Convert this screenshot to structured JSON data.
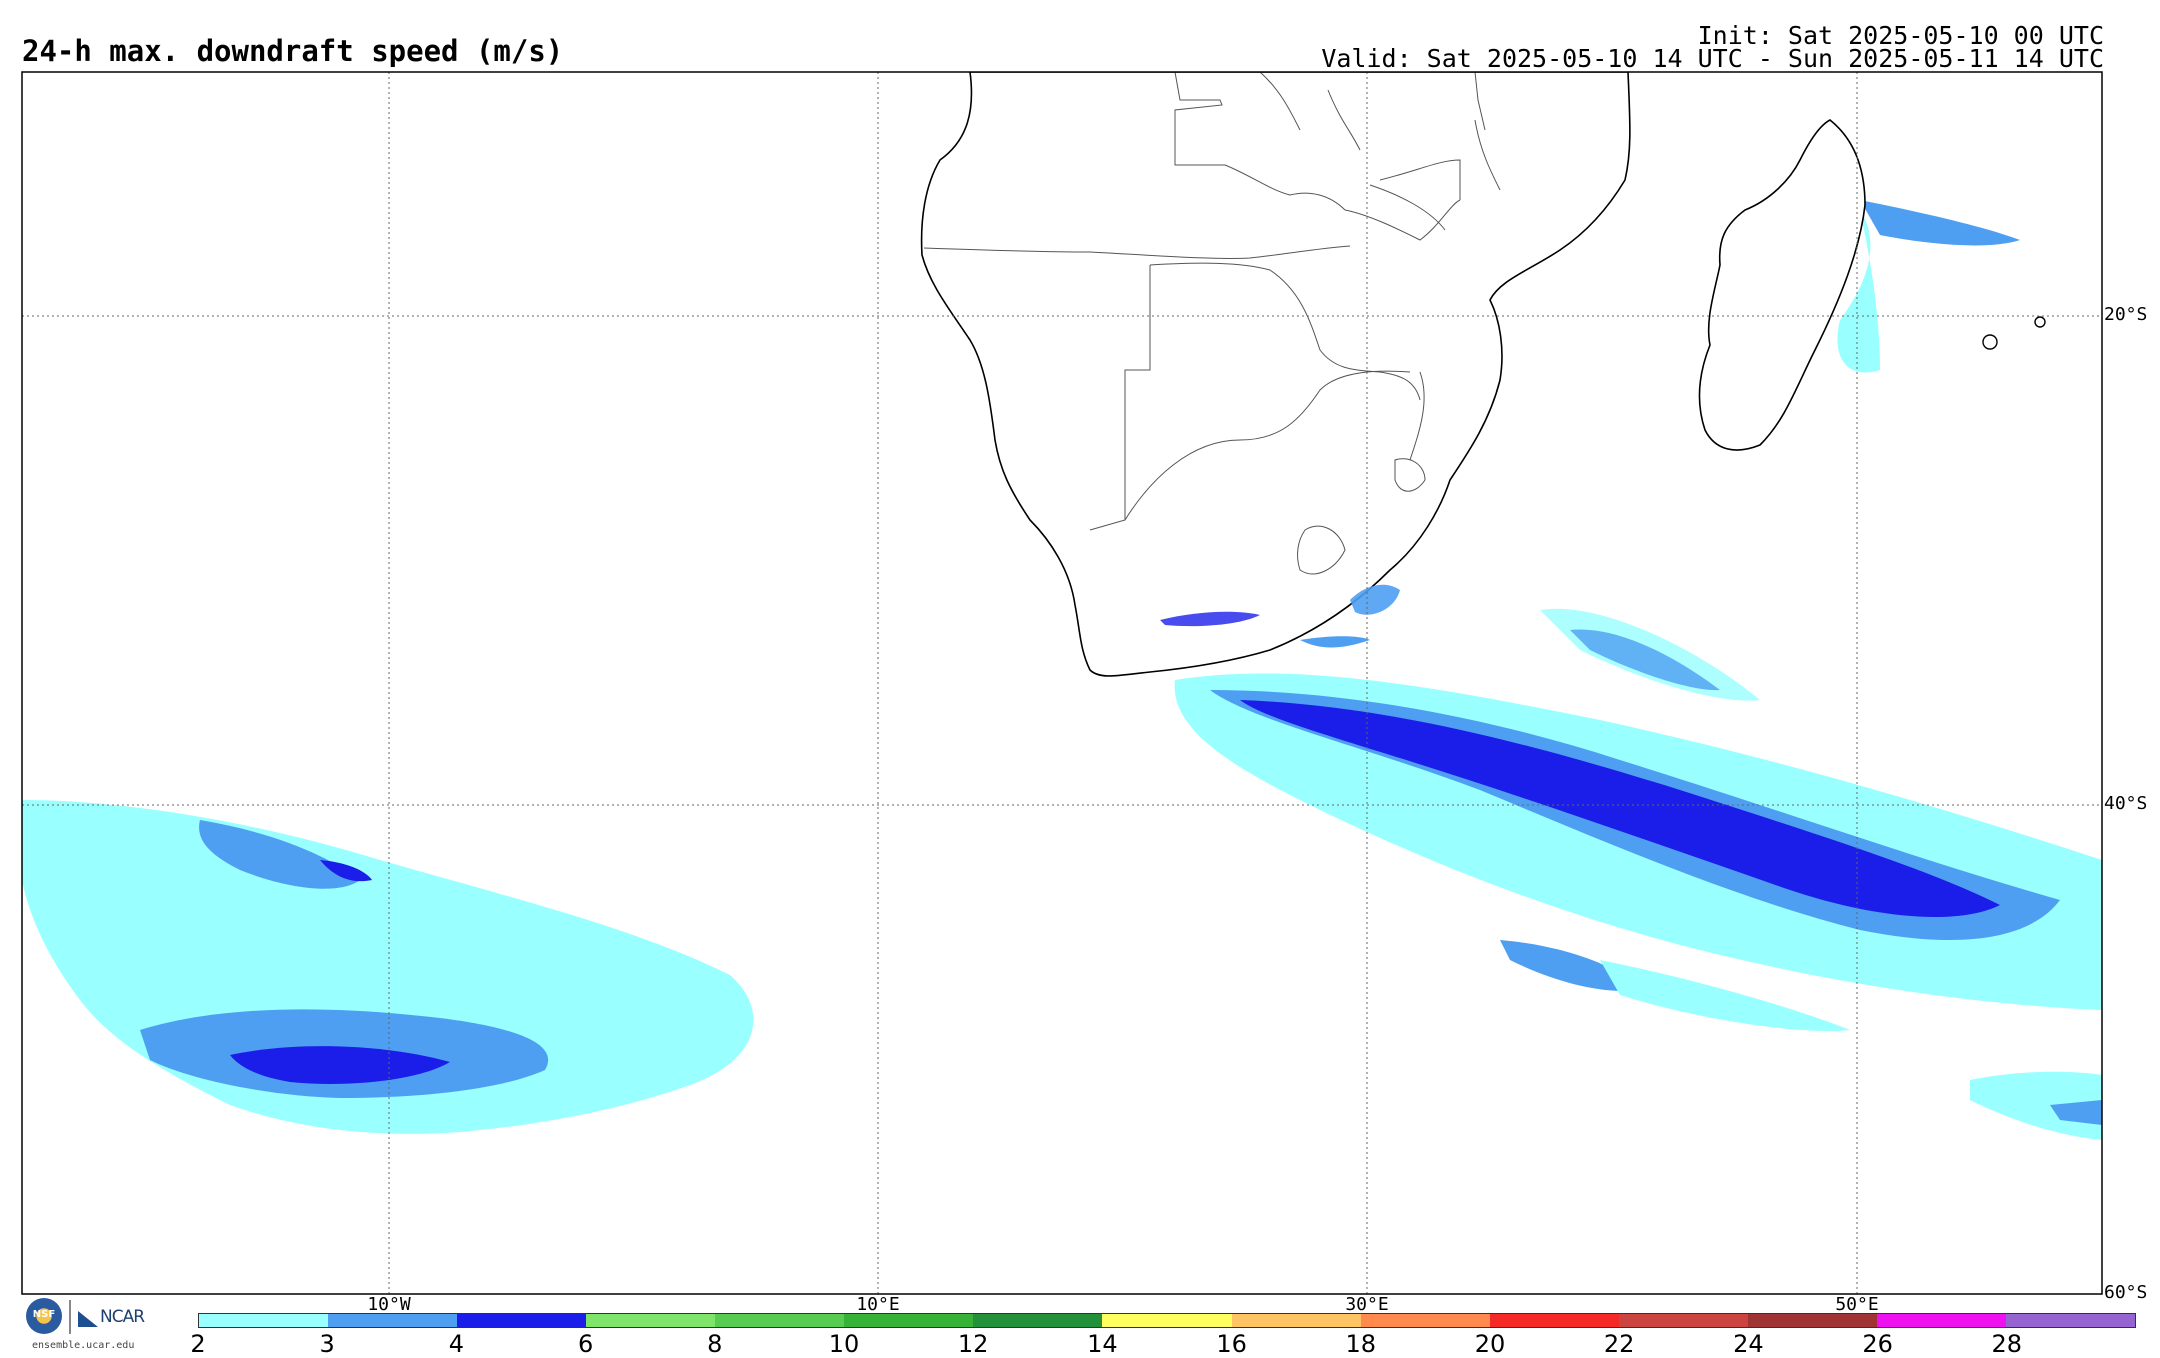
{
  "header": {
    "title": "24-h max. downdraft speed (m/s)",
    "init": "Init: Sat 2025-05-10 00 UTC",
    "valid": "Valid: Sat 2025-05-10 14 UTC - Sun 2025-05-11 14 UTC"
  },
  "map": {
    "lat_labels": [
      "20°S",
      "40°S",
      "60°S"
    ],
    "lon_labels": [
      "10°W",
      "10°E",
      "30°E",
      "50°E"
    ],
    "grid": "dotted",
    "land_color": "#ffffff",
    "coast_color": "#000000",
    "border_color": "#555555"
  },
  "colorbar": {
    "ticks": [
      "2",
      "3",
      "4",
      "6",
      "8",
      "10",
      "12",
      "14",
      "16",
      "18",
      "20",
      "22",
      "24",
      "26",
      "28"
    ],
    "colors": [
      "#99ffff",
      "#4e9ff2",
      "#1a1ee8",
      "#7fe46a",
      "#56cc50",
      "#36b238",
      "#23913a",
      "#ffff60",
      "#ffc464",
      "#ff8a4e",
      "#f52a26",
      "#cb4440",
      "#a03434",
      "#ee10ee",
      "#9564d0"
    ]
  },
  "branding": {
    "nsf": "NSF",
    "ncar": "NCAR",
    "url": "ensemble.ucar.edu"
  }
}
